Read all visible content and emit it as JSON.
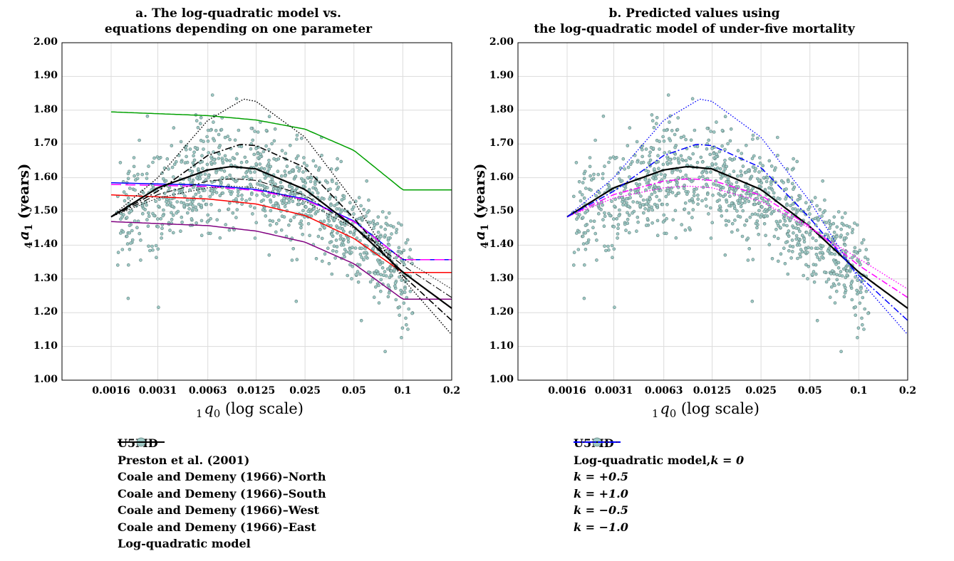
{
  "chart_data": [
    {
      "type": "scatter+line",
      "title": [
        "a. The log-quadratic model vs.",
        "equations depending on one parameter"
      ],
      "ylabel": "(years)",
      "ylabel_symbol": {
        "pre": "4",
        "main": "a",
        "sub": "1"
      },
      "xlabel": "(log scale)",
      "xlabel_symbol": {
        "pre": "1",
        "main": "q",
        "sub": "0"
      },
      "x_scale": "log",
      "xlim": [
        0.0016,
        0.2
      ],
      "ylim": [
        1.0,
        2.0
      ],
      "x_ticks": [
        0.0016,
        0.0031,
        0.0063,
        0.0125,
        0.025,
        0.05,
        0.1,
        0.2
      ],
      "x_tick_labels": [
        "0.0016",
        "0.0031",
        "0.0063",
        "0.0125",
        "0.025",
        "0.05",
        "0.1",
        "0.2"
      ],
      "y_ticks": [
        1.0,
        1.1,
        1.2,
        1.3,
        1.4,
        1.5,
        1.6,
        1.7,
        1.8,
        1.9,
        2.0
      ],
      "y_tick_labels": [
        "1.00",
        "1.10",
        "1.20",
        "1.30",
        "1.40",
        "1.50",
        "1.60",
        "1.70",
        "1.80",
        "1.90",
        "2.00"
      ],
      "grid": true,
      "legend_position": "below",
      "scatter": {
        "name": "U5MD",
        "color": "#9ec9c5",
        "n": 1050
      },
      "series": [
        {
          "name": "Preston et al. (2001)",
          "color": "#0000ff",
          "dash": "solid",
          "x": [
            0.0016,
            0.0063,
            0.0125,
            0.025,
            0.05,
            0.1,
            0.2
          ],
          "y": [
            1.585,
            1.578,
            1.565,
            1.537,
            1.472,
            1.357,
            1.357
          ]
        },
        {
          "name": "Coale and Demeny (1966)–North",
          "color": "#00a000",
          "dash": "solid",
          "x": [
            0.0016,
            0.0063,
            0.0125,
            0.025,
            0.05,
            0.1,
            0.2
          ],
          "y": [
            1.795,
            1.784,
            1.771,
            1.744,
            1.681,
            1.564,
            1.564
          ]
        },
        {
          "name": "Coale and Demeny (1966)–South",
          "color": "#ff0000",
          "dash": "solid",
          "x": [
            0.0016,
            0.0063,
            0.0125,
            0.025,
            0.05,
            0.1,
            0.2
          ],
          "y": [
            1.549,
            1.537,
            1.522,
            1.488,
            1.42,
            1.319,
            1.319
          ]
        },
        {
          "name": "Coale and Demeny (1966)–West",
          "color": "#ff00ff",
          "dash": "dashed",
          "x": [
            0.0016,
            0.0063,
            0.0125,
            0.025,
            0.05,
            0.1,
            0.2
          ],
          "y": [
            1.58,
            1.574,
            1.562,
            1.535,
            1.47,
            1.357,
            1.357
          ]
        },
        {
          "name": "Coale and Demeny (1966)–East",
          "color": "#800080",
          "dash": "solid",
          "x": [
            0.0016,
            0.0063,
            0.0125,
            0.025,
            0.05,
            0.1,
            0.2
          ],
          "y": [
            1.47,
            1.458,
            1.442,
            1.409,
            1.345,
            1.24,
            1.24
          ]
        },
        {
          "name": "Log-quadratic model",
          "color": "#000000",
          "dash": "solid",
          "width": 2.2,
          "x": [
            0.0016,
            0.0031,
            0.0063,
            0.0088,
            0.0125,
            0.025,
            0.05,
            0.1,
            0.2
          ],
          "y": [
            1.484,
            1.57,
            1.623,
            1.633,
            1.626,
            1.565,
            1.455,
            1.32,
            1.213
          ]
        },
        {
          "name": "",
          "color": "#000000",
          "dash": "dashdot",
          "width": 1.6,
          "x": [
            0.0016,
            0.0031,
            0.0063,
            0.01,
            0.0125,
            0.025,
            0.05,
            0.1,
            0.2
          ],
          "y": [
            1.484,
            1.56,
            1.666,
            1.699,
            1.695,
            1.63,
            1.48,
            1.31,
            1.177
          ]
        },
        {
          "name": "",
          "color": "#000000",
          "dash": "dotted",
          "width": 1.4,
          "x": [
            0.0016,
            0.0031,
            0.0063,
            0.0105,
            0.0125,
            0.025,
            0.05,
            0.1,
            0.2
          ],
          "y": [
            1.484,
            1.6,
            1.77,
            1.833,
            1.826,
            1.72,
            1.53,
            1.3,
            1.135
          ]
        },
        {
          "name": "",
          "color": "#000000",
          "dash": "dashdot",
          "width": 1.1,
          "x": [
            0.0016,
            0.0031,
            0.0063,
            0.009,
            0.0125,
            0.025,
            0.05,
            0.1,
            0.2
          ],
          "y": [
            1.484,
            1.55,
            1.59,
            1.597,
            1.592,
            1.548,
            1.455,
            1.34,
            1.245
          ]
        },
        {
          "name": "",
          "color": "#000000",
          "dash": "dotted",
          "width": 1.0,
          "x": [
            0.0016,
            0.0031,
            0.0063,
            0.0088,
            0.0125,
            0.025,
            0.05,
            0.1,
            0.2
          ],
          "y": [
            1.484,
            1.54,
            1.57,
            1.575,
            1.57,
            1.53,
            1.45,
            1.36,
            1.27
          ]
        }
      ],
      "legend": [
        {
          "label": "U5MD",
          "marker": "circle",
          "color": "#9ec9c5"
        },
        {
          "label": "Preston et al. (2001)",
          "color": "#0000ff",
          "dash": "solid"
        },
        {
          "label": "Coale and Demeny (1966)–North",
          "color": "#00a000",
          "dash": "solid"
        },
        {
          "label": "Coale and Demeny (1966)–South",
          "color": "#ff0000",
          "dash": "solid"
        },
        {
          "label": "Coale and Demeny (1966)–West",
          "color": "#ff00ff",
          "dash": "dashed"
        },
        {
          "label": "Coale and Demeny (1966)–East",
          "color": "#800080",
          "dash": "solid"
        },
        {
          "label": "Log-quadratic model",
          "color": "#000000",
          "dash": "solid"
        }
      ]
    },
    {
      "type": "scatter+line",
      "title": [
        "b. Predicted values using",
        "the log-quadratic model of under-five mortality"
      ],
      "ylabel": "(years)",
      "ylabel_symbol": {
        "pre": "4",
        "main": "a",
        "sub": "1"
      },
      "xlabel": "(log scale)",
      "xlabel_symbol": {
        "pre": "1",
        "main": "q",
        "sub": "0"
      },
      "x_scale": "log",
      "xlim": [
        0.0016,
        0.2
      ],
      "ylim": [
        1.0,
        2.0
      ],
      "x_ticks": [
        0.0016,
        0.0031,
        0.0063,
        0.0125,
        0.025,
        0.05,
        0.1,
        0.2
      ],
      "x_tick_labels": [
        "0.0016",
        "0.0031",
        "0.0063",
        "0.0125",
        "0.025",
        "0.05",
        "0.1",
        "0.2"
      ],
      "y_ticks": [
        1.0,
        1.1,
        1.2,
        1.3,
        1.4,
        1.5,
        1.6,
        1.7,
        1.8,
        1.9,
        2.0
      ],
      "y_tick_labels": [
        "1.00",
        "1.10",
        "1.20",
        "1.30",
        "1.40",
        "1.50",
        "1.60",
        "1.70",
        "1.80",
        "1.90",
        "2.00"
      ],
      "grid": true,
      "legend_position": "below",
      "scatter": {
        "name": "U5MD",
        "color": "#9ec9c5",
        "n": 1050
      },
      "series": [
        {
          "name": "Log-quadratic model, k = 0",
          "color": "#000000",
          "dash": "solid",
          "width": 2.2,
          "x": [
            0.0016,
            0.0031,
            0.0063,
            0.0088,
            0.0125,
            0.025,
            0.05,
            0.1,
            0.2
          ],
          "y": [
            1.484,
            1.57,
            1.623,
            1.633,
            1.626,
            1.565,
            1.455,
            1.32,
            1.213
          ]
        },
        {
          "name": "k = +0.5",
          "color": "#ff00ff",
          "dash": "dashdot",
          "width": 1.5,
          "x": [
            0.0016,
            0.0031,
            0.0063,
            0.009,
            0.0125,
            0.025,
            0.05,
            0.1,
            0.2
          ],
          "y": [
            1.484,
            1.55,
            1.59,
            1.597,
            1.592,
            1.548,
            1.455,
            1.34,
            1.245
          ]
        },
        {
          "name": "k = +1.0",
          "color": "#ff00ff",
          "dash": "dotted",
          "width": 1.3,
          "x": [
            0.0016,
            0.0031,
            0.0063,
            0.0088,
            0.0125,
            0.025,
            0.05,
            0.1,
            0.2
          ],
          "y": [
            1.484,
            1.54,
            1.57,
            1.575,
            1.57,
            1.53,
            1.45,
            1.36,
            1.27
          ]
        },
        {
          "name": "k = −0.5",
          "color": "#0000ff",
          "dash": "dashdot",
          "width": 1.5,
          "x": [
            0.0016,
            0.0031,
            0.0063,
            0.01,
            0.0125,
            0.025,
            0.05,
            0.1,
            0.2
          ],
          "y": [
            1.484,
            1.56,
            1.666,
            1.699,
            1.695,
            1.63,
            1.48,
            1.31,
            1.177
          ]
        },
        {
          "name": "k = −1.0",
          "color": "#0000ff",
          "dash": "dotted",
          "width": 1.3,
          "x": [
            0.0016,
            0.0031,
            0.0063,
            0.0105,
            0.0125,
            0.025,
            0.05,
            0.1,
            0.2
          ],
          "y": [
            1.484,
            1.6,
            1.77,
            1.833,
            1.826,
            1.72,
            1.53,
            1.3,
            1.135
          ]
        }
      ],
      "legend": [
        {
          "label": "U5MD",
          "marker": "circle",
          "color": "#9ec9c5"
        },
        {
          "label": "Log-quadratic model, ",
          "k_text": "k = 0",
          "color": "#000000",
          "dash": "solid"
        },
        {
          "label": "",
          "k_text": "k = +0.5",
          "color": "#ff00ff",
          "dash": "dashdot"
        },
        {
          "label": "",
          "k_text": "k = +1.0",
          "color": "#ff00ff",
          "dash": "dotted"
        },
        {
          "label": "",
          "k_text": "k = −0.5",
          "color": "#0000ff",
          "dash": "dashdot"
        },
        {
          "label": "",
          "k_text": "k = −1.0",
          "color": "#0000ff",
          "dash": "dotted"
        }
      ]
    }
  ]
}
